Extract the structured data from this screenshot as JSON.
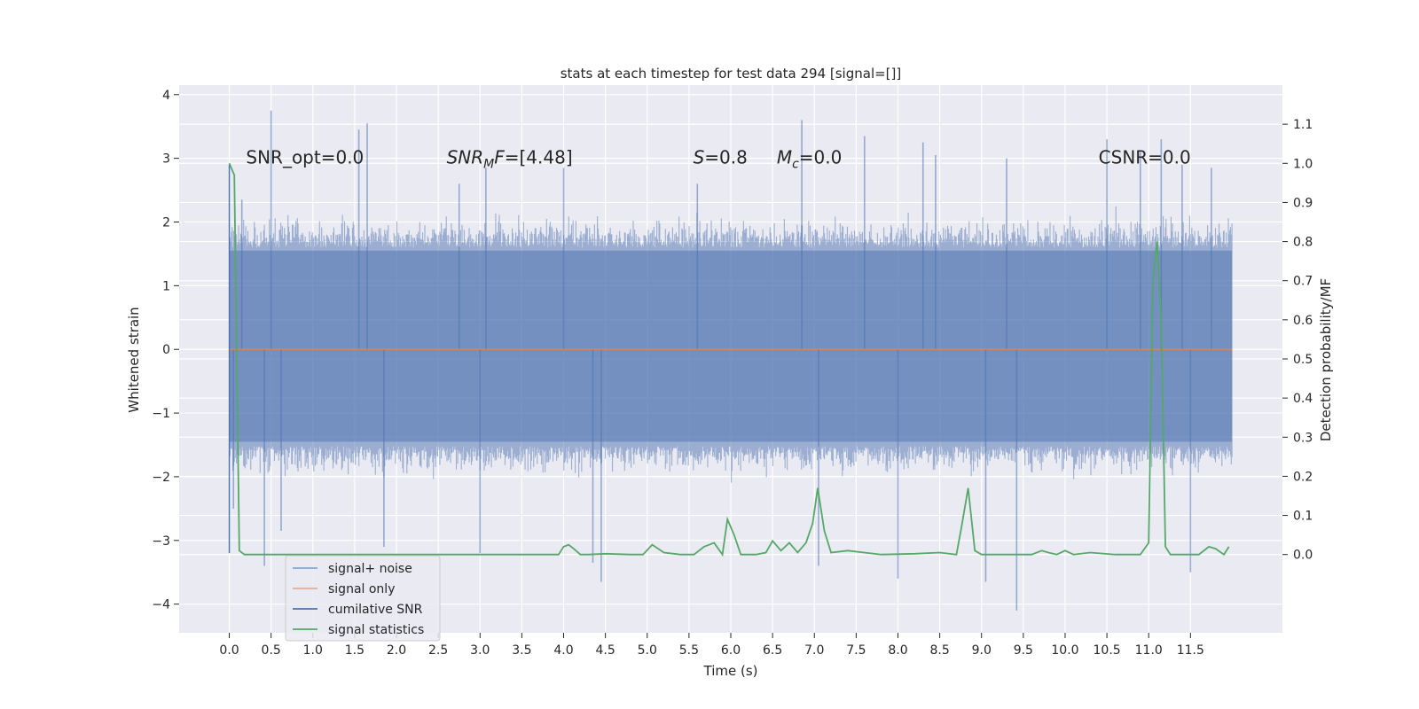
{
  "chart_data": {
    "type": "line",
    "title": "stats at each timestep for test data 294 [signal=[]]",
    "xlabel": "Time (s)",
    "ylabel_left": "Whitened strain",
    "ylabel_right": "Detection probability/MF",
    "xlim": [
      -0.6,
      12.6
    ],
    "ylim_left": [
      -4.45,
      4.15
    ],
    "ylim_right": [
      -0.2,
      1.2
    ],
    "x_ticks": [
      0.0,
      0.5,
      1.0,
      1.5,
      2.0,
      2.5,
      3.0,
      3.5,
      4.0,
      4.5,
      5.0,
      5.5,
      6.0,
      6.5,
      7.0,
      7.5,
      8.0,
      8.5,
      9.0,
      9.5,
      10.0,
      10.5,
      11.0,
      11.5
    ],
    "x_tick_labels": [
      "0.0",
      "0.5",
      "1.0",
      "1.5",
      "2.0",
      "2.5",
      "3.0",
      "3.5",
      "4.0",
      "4.5",
      "5.0",
      "5.5",
      "6.0",
      "6.5",
      "7.0",
      "7.5",
      "8.0",
      "8.5",
      "9.0",
      "9.5",
      "10.0",
      "10.5",
      "11.0",
      "11.5"
    ],
    "y_left_ticks": [
      -4,
      -3,
      -2,
      -1,
      0,
      1,
      2,
      3,
      4
    ],
    "y_left_tick_labels": [
      "−4",
      "−3",
      "−2",
      "−1",
      "0",
      "1",
      "2",
      "3",
      "4"
    ],
    "y_right_ticks": [
      0.0,
      0.1,
      0.2,
      0.3,
      0.4,
      0.5,
      0.6,
      0.7,
      0.8,
      0.9,
      1.0,
      1.1
    ],
    "y_right_tick_labels": [
      "0.0",
      "0.1",
      "0.2",
      "0.3",
      "0.4",
      "0.5",
      "0.6",
      "0.7",
      "0.8",
      "0.9",
      "1.0",
      "1.1"
    ],
    "grid": true,
    "legend_position": "lower-left",
    "annotations": [
      {
        "text": "SNR_opt=0.0",
        "x": 0.2,
        "y": 3.0
      },
      {
        "text": "SNR",
        "sub": "M",
        "tail": "F=[4.48]",
        "italic": true,
        "x": 2.6,
        "y": 3.0
      },
      {
        "text": "S",
        "tail": "=0.8",
        "italic": true,
        "x": 5.55,
        "y": 3.0
      },
      {
        "text": "M",
        "sub": "c",
        "tail": "=0.0",
        "italic": true,
        "x": 6.55,
        "y": 3.0
      },
      {
        "text": "CSNR=0.0",
        "x": 10.4,
        "y": 3.0
      }
    ],
    "series": [
      {
        "name": "signal+ noise",
        "axis": "left",
        "color": "#4c72b0",
        "x_range": [
          0.0,
          11.996
        ],
        "envelope_typical": [
          -1.9,
          2.0
        ],
        "spikes": [
          [
            0.5,
            3.75
          ],
          [
            0.42,
            -3.4
          ],
          [
            1.65,
            3.55
          ],
          [
            1.55,
            3.45
          ],
          [
            0.62,
            -2.85
          ],
          [
            1.85,
            -3.1
          ],
          [
            3.0,
            -3.2
          ],
          [
            3.07,
            2.85
          ],
          [
            4.45,
            -3.65
          ],
          [
            4.35,
            -3.35
          ],
          [
            4.0,
            2.85
          ],
          [
            6.85,
            3.6
          ],
          [
            7.05,
            -3.4
          ],
          [
            7.6,
            3.35
          ],
          [
            8.0,
            -3.6
          ],
          [
            8.3,
            3.25
          ],
          [
            8.45,
            3.05
          ],
          [
            9.05,
            -3.65
          ],
          [
            9.3,
            3.0
          ],
          [
            9.42,
            -4.1
          ],
          [
            10.5,
            3.3
          ],
          [
            10.9,
            3.1
          ],
          [
            11.15,
            3.3
          ],
          [
            11.5,
            -3.5
          ],
          [
            11.75,
            2.85
          ],
          [
            11.4,
            2.9
          ],
          [
            0.15,
            2.35
          ],
          [
            0.05,
            -2.5
          ],
          [
            2.75,
            2.6
          ],
          [
            5.6,
            2.6
          ]
        ]
      },
      {
        "name": "signal only",
        "axis": "left",
        "color": "#dd8452",
        "x": [
          0.0,
          11.996
        ],
        "y": [
          0.0,
          0.0
        ]
      },
      {
        "name": "cumilative SNR",
        "axis": "left",
        "color": "#4c72b0",
        "x": [
          0.0,
          0.0
        ],
        "y": [
          -3.2,
          2.9
        ]
      },
      {
        "name": "signal statistics",
        "axis": "right",
        "color": "#55a868",
        "x": [
          0.0,
          0.06,
          0.12,
          0.18,
          0.5,
          1.0,
          1.5,
          2.0,
          2.5,
          3.0,
          3.5,
          3.94,
          4.0,
          4.06,
          4.12,
          4.2,
          4.3,
          4.5,
          4.8,
          4.95,
          5.06,
          5.2,
          5.4,
          5.56,
          5.68,
          5.8,
          5.9,
          5.96,
          6.04,
          6.12,
          6.3,
          6.42,
          6.5,
          6.6,
          6.7,
          6.8,
          6.9,
          6.98,
          7.04,
          7.12,
          7.2,
          7.4,
          7.8,
          8.2,
          8.5,
          8.7,
          8.76,
          8.84,
          8.92,
          9.0,
          9.4,
          9.6,
          9.72,
          9.8,
          9.9,
          10.0,
          10.1,
          10.3,
          10.6,
          10.9,
          11.0,
          11.05,
          11.1,
          11.15,
          11.2,
          11.26,
          11.34,
          11.6,
          11.72,
          11.8,
          11.9,
          11.96
        ],
        "y": [
          1.0,
          0.97,
          0.01,
          0.0,
          0.0,
          0.0,
          0.0,
          0.0,
          0.0,
          0.0,
          0.0,
          0.0,
          0.02,
          0.025,
          0.015,
          0.0,
          0.0,
          0.002,
          0.0,
          0.0,
          0.025,
          0.005,
          0.0,
          0.0,
          0.02,
          0.03,
          0.0,
          0.09,
          0.05,
          0.0,
          0.0,
          0.005,
          0.035,
          0.01,
          0.03,
          0.005,
          0.03,
          0.08,
          0.17,
          0.06,
          0.005,
          0.01,
          0.0,
          0.002,
          0.005,
          0.0,
          0.07,
          0.17,
          0.01,
          0.0,
          0.0,
          0.0,
          0.01,
          0.005,
          0.0,
          0.01,
          0.0,
          0.005,
          0.0,
          0.0,
          0.03,
          0.7,
          0.8,
          0.6,
          0.02,
          0.0,
          0.0,
          0.0,
          0.02,
          0.015,
          0.0,
          0.02
        ]
      }
    ]
  }
}
